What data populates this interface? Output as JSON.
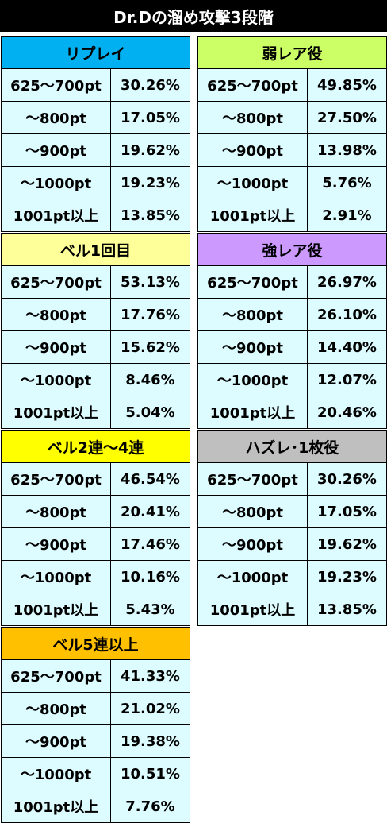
{
  "title": "Dr.Dの溜め攻撃3段階",
  "tables": [
    {
      "header": "リプレイ",
      "color": "#00b0f0",
      "rows": [
        [
          "625～700pt",
          "30.26%"
        ],
        [
          "～800pt",
          "17.05%"
        ],
        [
          "～900pt",
          "19.62%"
        ],
        [
          "～1000pt",
          "19.23%"
        ],
        [
          "1001pt以上",
          "13.85%"
        ]
      ]
    },
    {
      "header": "弱レア役",
      "color": "#ccff66",
      "rows": [
        [
          "625～700pt",
          "49.85%"
        ],
        [
          "～800pt",
          "27.50%"
        ],
        [
          "～900pt",
          "13.98%"
        ],
        [
          "～1000pt",
          "5.76%"
        ],
        [
          "1001pt以上",
          "2.91%"
        ]
      ]
    },
    {
      "header": "ベル1回目",
      "color": "#ffff99",
      "rows": [
        [
          "625～700pt",
          "53.13%"
        ],
        [
          "～800pt",
          "17.76%"
        ],
        [
          "～900pt",
          "15.62%"
        ],
        [
          "～1000pt",
          "8.46%"
        ],
        [
          "1001pt以上",
          "5.04%"
        ]
      ]
    },
    {
      "header": "強レア役",
      "color": "#cc99ff",
      "rows": [
        [
          "625～700pt",
          "26.97%"
        ],
        [
          "～800pt",
          "26.10%"
        ],
        [
          "～900pt",
          "14.40%"
        ],
        [
          "～1000pt",
          "12.07%"
        ],
        [
          "1001pt以上",
          "20.46%"
        ]
      ]
    },
    {
      "header": "ベル2連～4連",
      "color": "#ffff00",
      "rows": [
        [
          "625～700pt",
          "46.54%"
        ],
        [
          "～800pt",
          "20.41%"
        ],
        [
          "～900pt",
          "17.46%"
        ],
        [
          "～1000pt",
          "10.16%"
        ],
        [
          "1001pt以上",
          "5.43%"
        ]
      ]
    },
    {
      "header": "ハズレ･1枚役",
      "color": "#bfbfbf",
      "rows": [
        [
          "625～700pt",
          "30.26%"
        ],
        [
          "～800pt",
          "17.05%"
        ],
        [
          "～900pt",
          "19.62%"
        ],
        [
          "～1000pt",
          "19.23%"
        ],
        [
          "1001pt以上",
          "13.85%"
        ]
      ]
    },
    {
      "header": "ベル5連以上",
      "color": "#ffc000",
      "rows": [
        [
          "625～700pt",
          "41.33%"
        ],
        [
          "～800pt",
          "21.02%"
        ],
        [
          "～900pt",
          "19.38%"
        ],
        [
          "～1000pt",
          "10.51%"
        ],
        [
          "1001pt以上",
          "7.76%"
        ]
      ]
    }
  ]
}
